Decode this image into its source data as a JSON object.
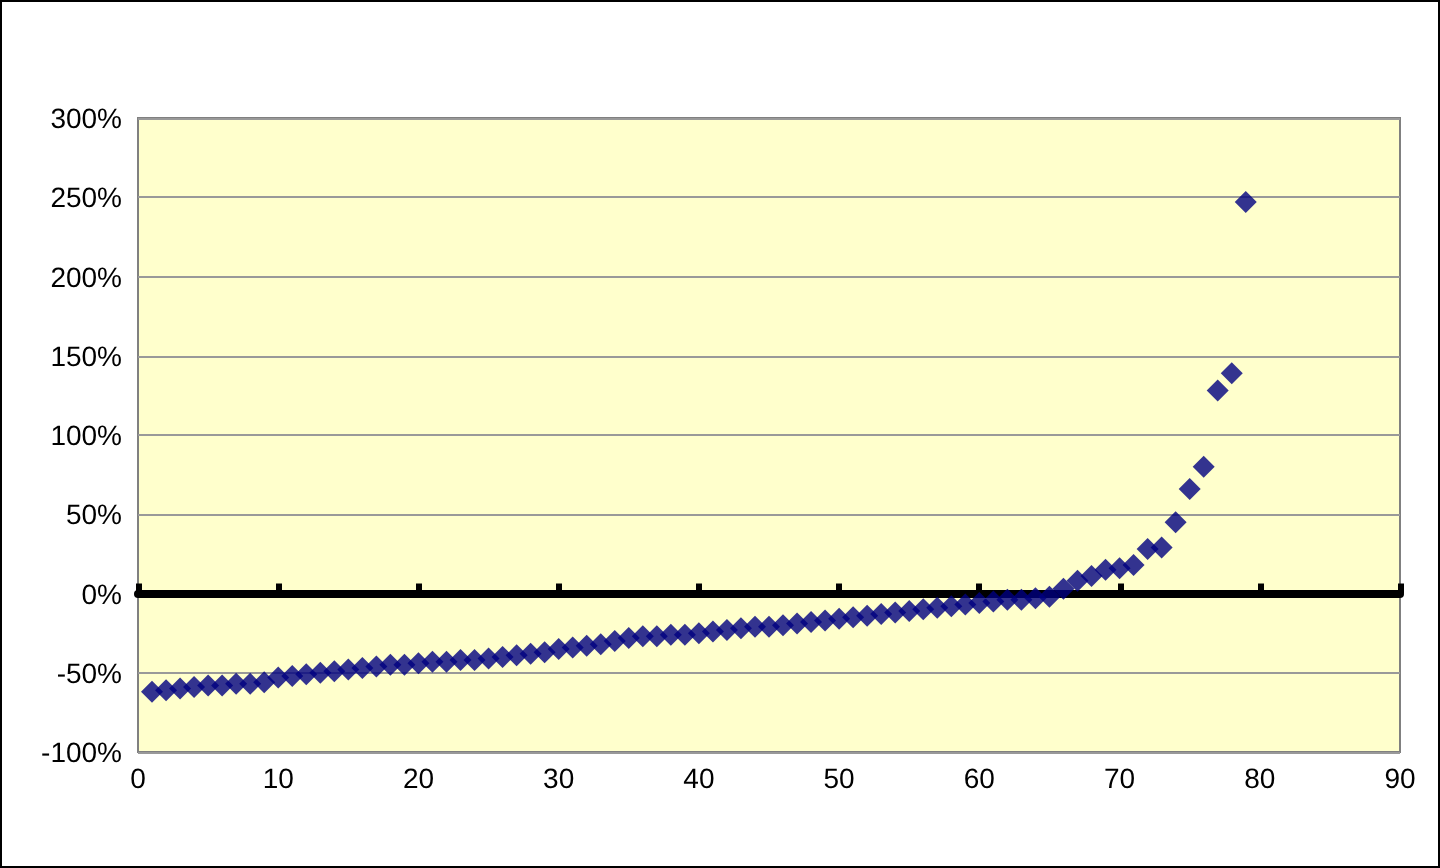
{
  "chart_data": {
    "type": "scatter",
    "marker": "diamond",
    "grid": "y",
    "x": [
      1,
      2,
      3,
      4,
      5,
      6,
      7,
      8,
      9,
      10,
      11,
      12,
      13,
      14,
      15,
      16,
      17,
      18,
      19,
      20,
      21,
      22,
      23,
      24,
      25,
      26,
      27,
      28,
      29,
      30,
      31,
      32,
      33,
      34,
      35,
      36,
      37,
      38,
      39,
      40,
      41,
      42,
      43,
      44,
      45,
      46,
      47,
      48,
      49,
      50,
      51,
      52,
      53,
      54,
      55,
      56,
      57,
      58,
      59,
      60,
      61,
      62,
      63,
      64,
      65,
      66,
      67,
      68,
      69,
      70,
      71,
      72,
      73,
      74,
      75,
      76,
      77,
      78,
      79
    ],
    "series": [
      {
        "color": "#000080",
        "values": [
          -62,
          -61,
          -60,
          -59,
          -58,
          -58,
          -57,
          -57,
          -56,
          -53,
          -52,
          -51,
          -50,
          -49,
          -48,
          -47,
          -46,
          -45,
          -45,
          -44,
          -43,
          -43,
          -42,
          -42,
          -41,
          -40,
          -39,
          -38,
          -37,
          -35,
          -34,
          -33,
          -32,
          -30,
          -28,
          -27,
          -27,
          -26,
          -26,
          -25,
          -24,
          -23,
          -22,
          -21,
          -21,
          -20,
          -19,
          -18,
          -17,
          -16,
          -15,
          -14,
          -13,
          -12,
          -11,
          -10,
          -9,
          -8,
          -7,
          -6,
          -5,
          -4,
          -4,
          -3,
          -2,
          3,
          8,
          11,
          15,
          16,
          18,
          28,
          29,
          45,
          66,
          80,
          128,
          139,
          247
        ]
      }
    ],
    "xlim": [
      0,
      90
    ],
    "xticks": [
      0,
      10,
      20,
      30,
      40,
      50,
      60,
      70,
      80,
      90
    ],
    "ylim": [
      -100,
      300
    ],
    "yticks": [
      {
        "value": -100,
        "label": "-100%"
      },
      {
        "value": -50,
        "label": "-50%"
      },
      {
        "value": 0,
        "label": "0%"
      },
      {
        "value": 50,
        "label": "50%"
      },
      {
        "value": 100,
        "label": "100%"
      },
      {
        "value": 150,
        "label": "150%"
      },
      {
        "value": 200,
        "label": "200%"
      },
      {
        "value": 250,
        "label": "250%"
      },
      {
        "value": 300,
        "label": "300%"
      }
    ]
  }
}
